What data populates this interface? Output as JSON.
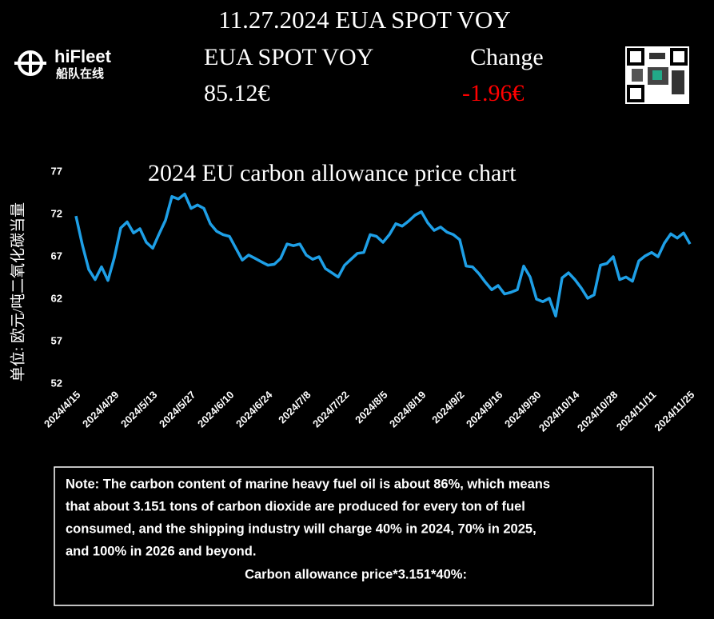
{
  "header": {
    "title": "11.27.2024 EUA SPOT VOY",
    "logo_name": "hiFleet",
    "logo_subtitle": "船队在线",
    "product_label": "EUA SPOT VOY",
    "price": "85.12€",
    "change_label": "Change",
    "change": "-1.96€"
  },
  "chart_data": {
    "type": "line",
    "title": "2024 EU carbon allowance price chart",
    "y_label": "单位: 欧元/吨二氧化碳当量",
    "categories": [
      "2024/4/15",
      null,
      null,
      null,
      null,
      null,
      "2024/4/29",
      null,
      null,
      null,
      null,
      null,
      "2024/5/13",
      null,
      null,
      null,
      null,
      null,
      "2024/5/27",
      null,
      null,
      null,
      null,
      null,
      "2024/6/10",
      null,
      null,
      null,
      null,
      null,
      "2024/6/24",
      null,
      null,
      null,
      null,
      null,
      "2024/7/8",
      null,
      null,
      null,
      null,
      null,
      "2024/7/22",
      null,
      null,
      null,
      null,
      null,
      "2024/8/5",
      null,
      null,
      null,
      null,
      null,
      "2024/8/19",
      null,
      null,
      null,
      null,
      null,
      "2024/9/2",
      null,
      null,
      null,
      null,
      null,
      "2024/9/16",
      null,
      null,
      null,
      null,
      null,
      "2024/9/30",
      null,
      null,
      null,
      null,
      null,
      "2024/10/14",
      null,
      null,
      null,
      null,
      null,
      "2024/10/28",
      null,
      null,
      null,
      null,
      null,
      "2024/11/11",
      null,
      null,
      null,
      null,
      null,
      "2024/11/25"
    ],
    "series": [
      {
        "name": "EUA SPOT VOY",
        "color": "#1e9fe6",
        "values": [
          71.8,
          68.4,
          65.5,
          64.3,
          65.8,
          64.2,
          66.9,
          70.4,
          71.1,
          69.8,
          70.3,
          68.7,
          68.0,
          69.7,
          71.3,
          74.1,
          73.8,
          74.4,
          72.7,
          73.1,
          72.7,
          70.9,
          70.0,
          69.6,
          69.4,
          68.0,
          66.6,
          67.2,
          66.8,
          66.4,
          66.0,
          66.1,
          66.8,
          68.5,
          68.3,
          68.5,
          67.2,
          66.7,
          67.0,
          65.6,
          65.1,
          64.6,
          66.0,
          66.7,
          67.4,
          67.5,
          69.6,
          69.4,
          68.7,
          69.6,
          70.9,
          70.6,
          71.2,
          71.9,
          72.3,
          71.0,
          70.1,
          70.5,
          69.9,
          69.6,
          69.0,
          65.9,
          65.8,
          65.0,
          64.0,
          63.1,
          63.6,
          62.6,
          62.8,
          63.1,
          65.9,
          64.6,
          62.0,
          61.7,
          62.1,
          60.0,
          64.5,
          65.1,
          64.3,
          63.3,
          62.1,
          62.5,
          66.0,
          66.2,
          67.0,
          64.3,
          64.6,
          64.1,
          66.5,
          67.1,
          67.5,
          67.0,
          68.6,
          69.7,
          69.2,
          69.8,
          68.5
        ]
      }
    ],
    "ylim": [
      52,
      77
    ],
    "yticks": [
      52,
      57,
      62,
      67,
      72,
      77
    ],
    "grid": false
  },
  "note": {
    "lines": [
      "Note: The carbon content of marine heavy fuel oil is about 86%, which means",
      "that about 3.151 tons of carbon dioxide are produced for every ton of fuel",
      "consumed, and the shipping industry will charge 40% in 2024, 70% in 2025,",
      "and 100% in 2026 and beyond."
    ],
    "formula": "Carbon allowance price*3.151*40%:"
  }
}
